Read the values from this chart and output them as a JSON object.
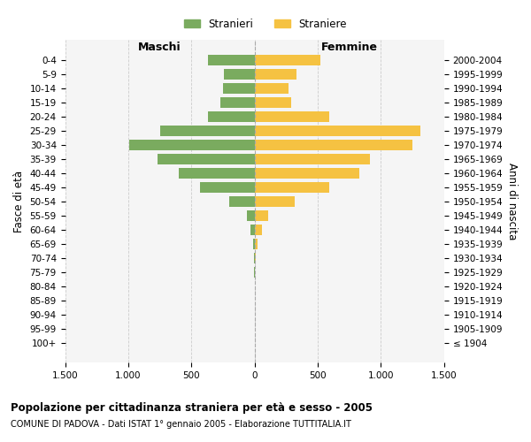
{
  "age_groups": [
    "100+",
    "95-99",
    "90-94",
    "85-89",
    "80-84",
    "75-79",
    "70-74",
    "65-69",
    "60-64",
    "55-59",
    "50-54",
    "45-49",
    "40-44",
    "35-39",
    "30-34",
    "25-29",
    "20-24",
    "15-19",
    "10-14",
    "5-9",
    "0-4"
  ],
  "birth_years": [
    "≤ 1904",
    "1905-1909",
    "1910-1914",
    "1915-1919",
    "1920-1924",
    "1925-1929",
    "1930-1934",
    "1935-1939",
    "1940-1944",
    "1945-1949",
    "1950-1954",
    "1955-1959",
    "1960-1964",
    "1965-1969",
    "1970-1974",
    "1975-1979",
    "1980-1984",
    "1985-1989",
    "1990-1994",
    "1995-1999",
    "2000-2004"
  ],
  "males": [
    0,
    0,
    0,
    0,
    0,
    2,
    4,
    15,
    30,
    60,
    200,
    430,
    600,
    770,
    990,
    750,
    370,
    270,
    250,
    240,
    370
  ],
  "females": [
    0,
    0,
    0,
    0,
    2,
    5,
    10,
    25,
    60,
    110,
    320,
    590,
    830,
    910,
    1250,
    1310,
    590,
    290,
    270,
    330,
    520
  ],
  "male_color": "#7aab5f",
  "female_color": "#f5c242",
  "background_color": "#ffffff",
  "grid_color": "#cccccc",
  "title": "Popolazione per cittadinanza straniera per età e sesso - 2005",
  "subtitle": "COMUNE DI PADOVA - Dati ISTAT 1° gennaio 2005 - Elaborazione TUTTITALIA.IT",
  "legend_male": "Stranieri",
  "legend_female": "Straniere",
  "xlabel_left": "Maschi",
  "xlabel_right": "Femmine",
  "ylabel_left": "Fasce di età",
  "ylabel_right": "Anni di nascita",
  "xlim": 1500,
  "xtick_labels": [
    "1.500",
    "1.000",
    "500",
    "0",
    "500",
    "1.000",
    "1.500"
  ]
}
